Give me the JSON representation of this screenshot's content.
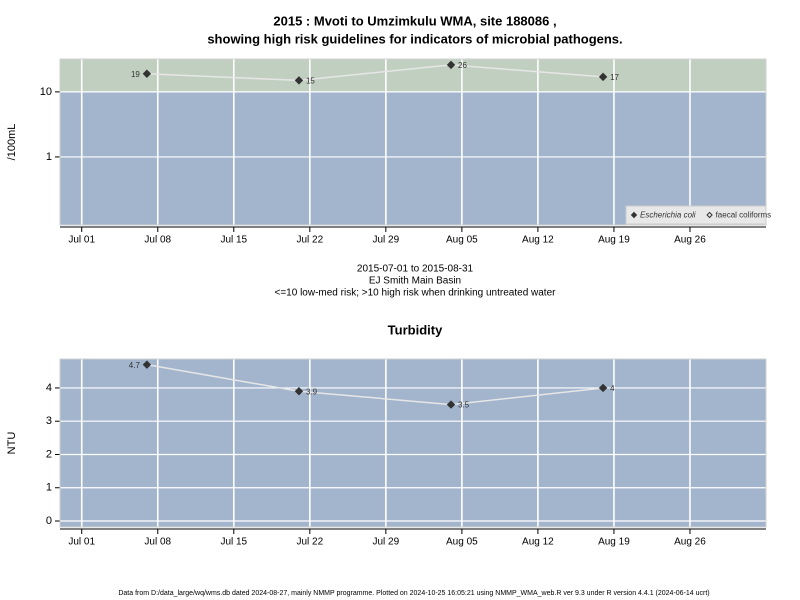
{
  "chart_data": [
    {
      "type": "line",
      "title": "2015 : Mvoti to Umzimkulu WMA, site 188086 ,",
      "subtitle": "showing high risk guidelines for indicators of microbial pathogens.",
      "ylabel": "/100mL",
      "notes": [
        "2015-07-01 to 2015-08-31",
        "EJ Smith Main Basin",
        "<=10 low-med risk; >10 high risk when drinking untreated water"
      ],
      "x": [
        "2015-07-07",
        "2015-07-21",
        "2015-08-04",
        "2015-08-18"
      ],
      "series": [
        {
          "name": "Escherichia coli",
          "font_style": "italic",
          "marker": "filled",
          "color": "#333333",
          "line_color": "#e6e6e6",
          "values": [
            19,
            15,
            26,
            17
          ]
        },
        {
          "name": "faecal coliforms",
          "font_style": "normal",
          "marker": "open",
          "color": "#333333",
          "line_color": "#e6e6e6",
          "values": [
            null,
            null,
            null,
            null
          ]
        }
      ],
      "xlim": [
        "2015-06-29",
        "2015-09-02"
      ],
      "xticks": [
        {
          "value": "2015-07-01",
          "label": "Jul 01"
        },
        {
          "value": "2015-07-08",
          "label": "Jul 08"
        },
        {
          "value": "2015-07-15",
          "label": "Jul 15"
        },
        {
          "value": "2015-07-22",
          "label": "Jul 22"
        },
        {
          "value": "2015-07-29",
          "label": "Jul 29"
        },
        {
          "value": "2015-08-05",
          "label": "Aug 05"
        },
        {
          "value": "2015-08-12",
          "label": "Aug 12"
        },
        {
          "value": "2015-08-19",
          "label": "Aug 19"
        },
        {
          "value": "2015-08-26",
          "label": "Aug 26"
        }
      ],
      "ylim": [
        0.09,
        32
      ],
      "yticks": [
        1,
        10
      ],
      "log_y": true,
      "grid": true,
      "background": "#a2b5cd",
      "threshold": 10,
      "high_risk_color": "#c1cfc0",
      "legend": "bottom-right"
    },
    {
      "type": "line",
      "title": "Turbidity",
      "ylabel": "NTU",
      "x": [
        "2015-07-07",
        "2015-07-21",
        "2015-08-04",
        "2015-08-18"
      ],
      "series": [
        {
          "marker": "filled",
          "color": "#333333",
          "line_color": "#e6e6e6",
          "values": [
            4.7,
            3.9,
            3.5,
            4
          ]
        }
      ],
      "xlim": [
        "2015-06-29",
        "2015-09-02"
      ],
      "xticks": [
        {
          "value": "2015-07-01",
          "label": "Jul 01"
        },
        {
          "value": "2015-07-08",
          "label": "Jul 08"
        },
        {
          "value": "2015-07-15",
          "label": "Jul 15"
        },
        {
          "value": "2015-07-22",
          "label": "Jul 22"
        },
        {
          "value": "2015-07-29",
          "label": "Jul 29"
        },
        {
          "value": "2015-08-05",
          "label": "Aug 05"
        },
        {
          "value": "2015-08-12",
          "label": "Aug 12"
        },
        {
          "value": "2015-08-19",
          "label": "Aug 19"
        },
        {
          "value": "2015-08-26",
          "label": "Aug 26"
        }
      ],
      "ylim": [
        -0.18,
        4.87
      ],
      "yticks": [
        0,
        1,
        2,
        3,
        4
      ],
      "log_y": false,
      "grid": true,
      "background": "#a2b5cd"
    }
  ],
  "footer": "Data from D:/data_large/wq/wms.db dated 2024-08-27, mainly NMMP programme. Plotted on 2024-10-25 16:05:21 using NMMP_WMA_web.R ver 9.3 under R version 4.4.1 (2024-06-14 ucrt)"
}
